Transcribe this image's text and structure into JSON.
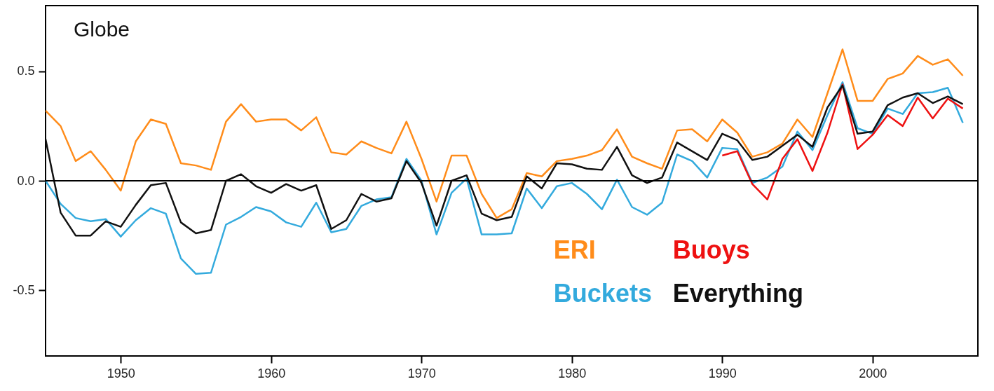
{
  "chart_data": {
    "type": "line",
    "title": "Globe",
    "x": [
      1945,
      1946,
      1947,
      1948,
      1949,
      1950,
      1951,
      1952,
      1953,
      1954,
      1955,
      1956,
      1957,
      1958,
      1959,
      1960,
      1961,
      1962,
      1963,
      1964,
      1965,
      1966,
      1967,
      1968,
      1969,
      1970,
      1971,
      1972,
      1973,
      1974,
      1975,
      1976,
      1977,
      1978,
      1979,
      1980,
      1981,
      1982,
      1983,
      1984,
      1985,
      1986,
      1987,
      1988,
      1989,
      1990,
      1991,
      1992,
      1993,
      1994,
      1995,
      1996,
      1997,
      1998,
      1999,
      2000,
      2001,
      2002,
      2003,
      2004,
      2005,
      2006
    ],
    "series": [
      {
        "name": "ERI",
        "color": "#ff8c1a",
        "values": [
          0.32,
          0.25,
          0.09,
          0.135,
          0.05,
          -0.045,
          0.18,
          0.28,
          0.26,
          0.08,
          0.07,
          0.05,
          0.27,
          0.35,
          0.27,
          0.28,
          0.28,
          0.23,
          0.29,
          0.13,
          0.12,
          0.18,
          0.15,
          0.125,
          0.27,
          0.1,
          -0.095,
          0.115,
          0.115,
          -0.06,
          -0.17,
          -0.13,
          0.035,
          0.02,
          0.09,
          0.1,
          0.115,
          0.14,
          0.235,
          0.11,
          0.08,
          0.055,
          0.23,
          0.235,
          0.18,
          0.28,
          0.22,
          0.11,
          0.13,
          0.17,
          0.28,
          0.2,
          0.4,
          0.6,
          0.365,
          0.365,
          0.465,
          0.49,
          0.57,
          0.53,
          0.555,
          0.48
        ]
      },
      {
        "name": "Buckets",
        "color": "#33aadd",
        "values": [
          0.0,
          -0.105,
          -0.17,
          -0.185,
          -0.175,
          -0.255,
          -0.18,
          -0.125,
          -0.15,
          -0.355,
          -0.425,
          -0.42,
          -0.2,
          -0.165,
          -0.12,
          -0.14,
          -0.19,
          -0.21,
          -0.1,
          -0.235,
          -0.22,
          -0.115,
          -0.085,
          -0.075,
          0.1,
          0.0,
          -0.245,
          -0.055,
          0.01,
          -0.245,
          -0.245,
          -0.24,
          -0.035,
          -0.125,
          -0.025,
          -0.01,
          -0.06,
          -0.13,
          0.005,
          -0.12,
          -0.155,
          -0.1,
          0.12,
          0.09,
          0.015,
          0.15,
          0.145,
          -0.01,
          0.015,
          0.065,
          0.225,
          0.14,
          0.3,
          0.45,
          0.24,
          0.215,
          0.33,
          0.305,
          0.4,
          0.405,
          0.425,
          0.265
        ]
      },
      {
        "name": "Buoys",
        "color": "#ee1111",
        "x": [
          1990,
          1991,
          1992,
          1993,
          1994,
          1995,
          1996,
          1997,
          1998,
          1999,
          2000,
          2001,
          2002,
          2003,
          2004,
          2005,
          2006
        ],
        "values": [
          0.115,
          0.135,
          -0.015,
          -0.085,
          0.1,
          0.19,
          0.045,
          0.22,
          0.44,
          0.145,
          0.21,
          0.3,
          0.25,
          0.38,
          0.285,
          0.375,
          0.33
        ]
      },
      {
        "name": "Everything",
        "color": "#111111",
        "values": [
          0.19,
          -0.145,
          -0.25,
          -0.25,
          -0.185,
          -0.21,
          -0.11,
          -0.02,
          -0.01,
          -0.19,
          -0.24,
          -0.225,
          0.0,
          0.03,
          -0.025,
          -0.055,
          -0.015,
          -0.045,
          -0.02,
          -0.22,
          -0.18,
          -0.06,
          -0.095,
          -0.08,
          0.09,
          -0.01,
          -0.205,
          0.0,
          0.025,
          -0.15,
          -0.18,
          -0.165,
          0.02,
          -0.035,
          0.08,
          0.075,
          0.055,
          0.05,
          0.155,
          0.025,
          -0.01,
          0.015,
          0.175,
          0.135,
          0.095,
          0.215,
          0.185,
          0.095,
          0.11,
          0.16,
          0.21,
          0.155,
          0.335,
          0.435,
          0.215,
          0.225,
          0.345,
          0.38,
          0.4,
          0.355,
          0.385,
          0.35
        ]
      }
    ],
    "xlim": [
      1945,
      2007
    ],
    "xticks": [
      1950,
      1960,
      1970,
      1980,
      1990,
      2000
    ],
    "ylim": [
      -0.8,
      0.8
    ],
    "yticks": [
      {
        "value": -0.5,
        "label": "-0.5"
      },
      {
        "value": 0,
        "label": "0.0"
      },
      {
        "value": 0.5,
        "label": "0.5"
      }
    ],
    "ref_lines": [
      {
        "axis": "y",
        "value": 0,
        "color": "#000000"
      }
    ],
    "legend": "bottom right",
    "grid": false,
    "line_style": "solid"
  }
}
